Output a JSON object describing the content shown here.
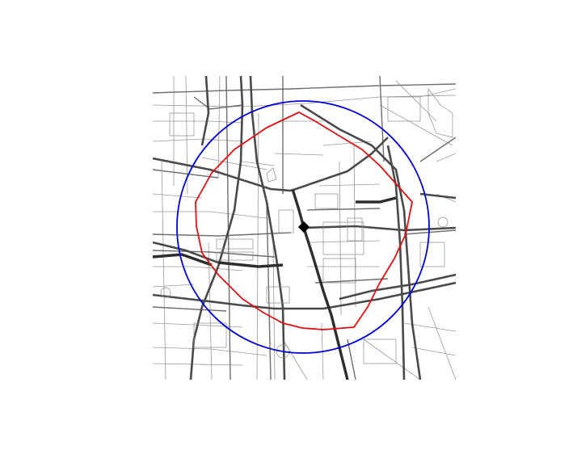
{
  "map": {
    "style": "street-network isochrone plot",
    "colors": {
      "background": "#ffffff",
      "roads": "#555555",
      "buffer_circle": "#0000dd",
      "isochrone": "#e01010",
      "center_marker": "#000000"
    },
    "overlays": [
      {
        "kind": "circle-buffer",
        "color_key": "buffer_circle"
      },
      {
        "kind": "isochrone-polygon",
        "color_key": "isochrone"
      },
      {
        "kind": "center-point-marker",
        "shape": "diamond"
      }
    ]
  }
}
